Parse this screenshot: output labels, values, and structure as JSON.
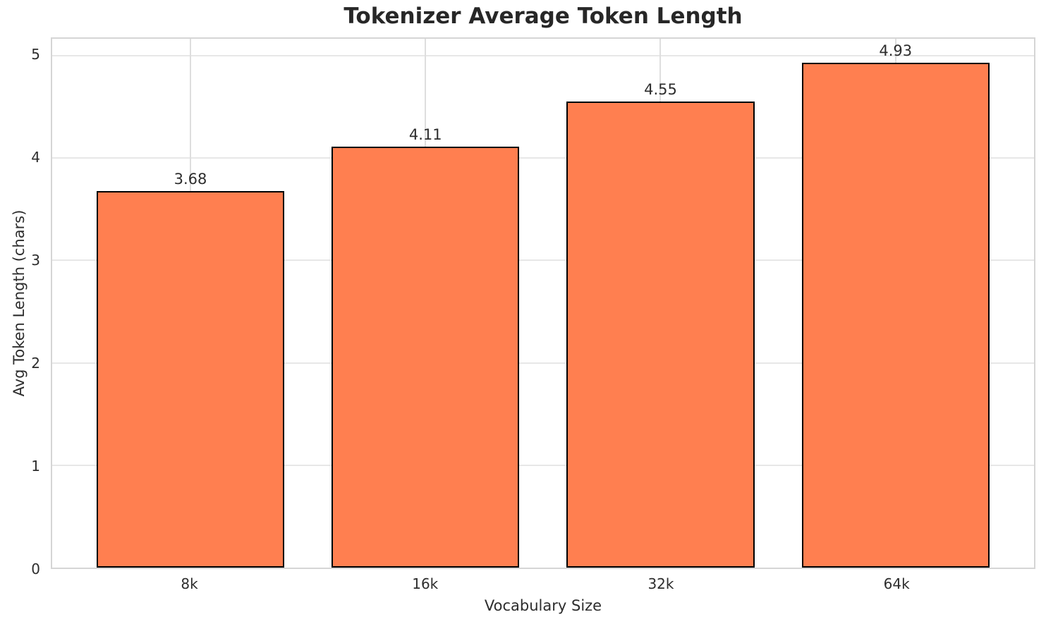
{
  "chart_data": {
    "type": "bar",
    "title": "Tokenizer Average Token Length",
    "xlabel": "Vocabulary Size",
    "ylabel": "Avg Token Length (chars)",
    "categories": [
      "8k",
      "16k",
      "32k",
      "64k"
    ],
    "values": [
      3.68,
      4.11,
      4.55,
      4.93
    ],
    "value_labels": [
      "3.68",
      "4.11",
      "4.55",
      "4.93"
    ],
    "yticks": [
      0,
      1,
      2,
      3,
      4,
      5
    ],
    "ytick_labels": [
      "0",
      "1",
      "2",
      "3",
      "4",
      "5"
    ],
    "ylim": [
      0,
      5.165
    ],
    "grid": true,
    "legend": null,
    "bar_color": "#FF7F50",
    "bar_edge_color": "#000000",
    "grid_color": "#e7e7e7",
    "spine_color": "#d5d5d5",
    "text_color": "#2d2d2d",
    "background": "#ffffff"
  }
}
